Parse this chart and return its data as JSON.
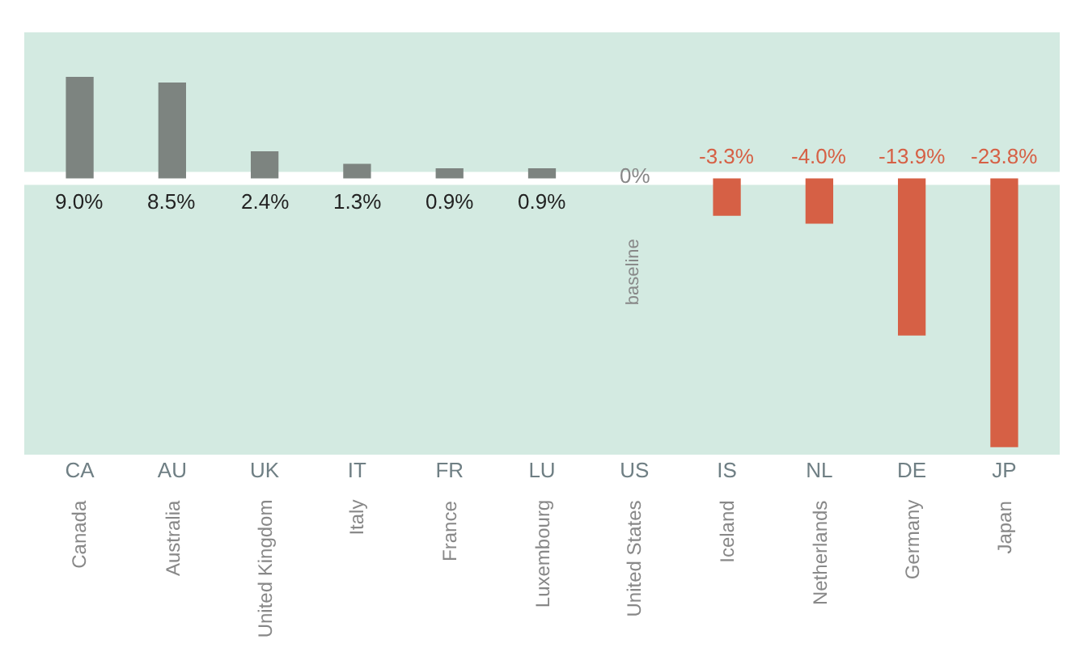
{
  "chart_data": {
    "type": "bar",
    "categories": [
      "CA",
      "AU",
      "UK",
      "IT",
      "FR",
      "LU",
      "US",
      "IS",
      "NL",
      "DE",
      "JP"
    ],
    "values": [
      9.0,
      8.5,
      2.4,
      1.3,
      0.9,
      0.9,
      0,
      -3.3,
      -4.0,
      -13.9,
      -23.8
    ],
    "colors": [
      "#7d8480",
      "#7d8480",
      "#7d8480",
      "#7d8480",
      "#7d8480",
      "#7d8480",
      "#7d8480",
      "#d66045",
      "#d66045",
      "#d66045",
      "#d66045"
    ],
    "value_labels": [
      "9.0%",
      "8.5%",
      "2.4%",
      "1.3%",
      "0.9%",
      "0.9%",
      "0%",
      "-3.3%",
      "-4.0%",
      "-13.9%",
      "-23.8%"
    ],
    "annotations": [
      "Canada",
      "Australia",
      "United Kingdom",
      "Italy",
      "France",
      "Luxembourg",
      "United States",
      "Iceland",
      "Netherlands",
      "Germany",
      "Japan",
      "baseline"
    ],
    "ref_lines": [
      {
        "axis": "y",
        "value": 0,
        "color": "#ffffff"
      }
    ],
    "grid": false,
    "legend": false
  }
}
